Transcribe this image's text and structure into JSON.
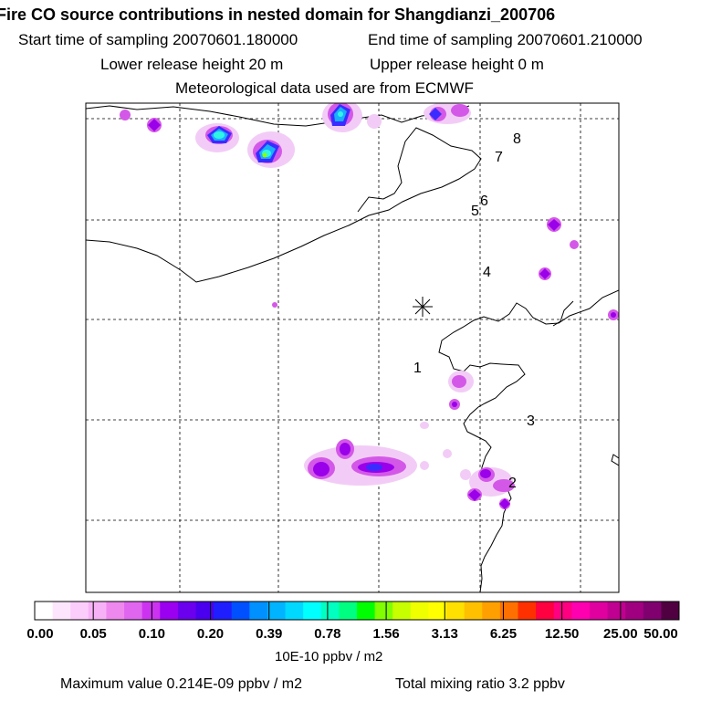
{
  "header": {
    "title": "Fire CO source contributions in nested domain for Shangdianzi_200706",
    "start_sampling": "Start time of sampling 20070601.180000",
    "end_sampling": "End time of sampling 20070601.210000",
    "lower_release": "Lower release height   20 m",
    "upper_release": "Upper release height    0 m",
    "met_data": "Meteorological data used are from ECMWF"
  },
  "map": {
    "release_marker_icon": "asterisk-icon",
    "labels": [
      {
        "id": "1",
        "text": "1"
      },
      {
        "id": "2",
        "text": "2"
      },
      {
        "id": "3",
        "text": "3"
      },
      {
        "id": "4",
        "text": "4"
      },
      {
        "id": "5",
        "text": "5"
      },
      {
        "id": "6",
        "text": "6"
      },
      {
        "id": "7",
        "text": "7"
      },
      {
        "id": "8",
        "text": "8"
      }
    ]
  },
  "colorbar": {
    "ticks": [
      "0.00",
      "0.05",
      "0.10",
      "0.20",
      "0.39",
      "0.78",
      "1.56",
      "3.13",
      "6.25",
      "12.50",
      "25.00",
      "50.00"
    ],
    "colors": [
      "#ffffff",
      "#fde6fd",
      "#fbcdfb",
      "#f7b2f7",
      "#ee88ee",
      "#e066f0",
      "#cc33f0",
      "#9b00f0",
      "#6a00ee",
      "#4a00ee",
      "#1e1eff",
      "#0050ff",
      "#0090ff",
      "#00b4ff",
      "#00d8ff",
      "#00ffff",
      "#00ffc0",
      "#00ff80",
      "#00ff00",
      "#80ff00",
      "#c8ff00",
      "#f0ff00",
      "#ffff00",
      "#ffe000",
      "#ffc000",
      "#ffa000",
      "#ff7000",
      "#ff3000",
      "#ff0040",
      "#ff0080",
      "#ff00b0",
      "#e000a0",
      "#c00090",
      "#a00080",
      "#800070",
      "#500040"
    ],
    "units": "10E-10 ppbv / m2"
  },
  "footer": {
    "max_value": "Maximum value  0.214E-09 ppbv / m2",
    "total_mixing": "Total mixing ratio       3.2 ppbv"
  }
}
